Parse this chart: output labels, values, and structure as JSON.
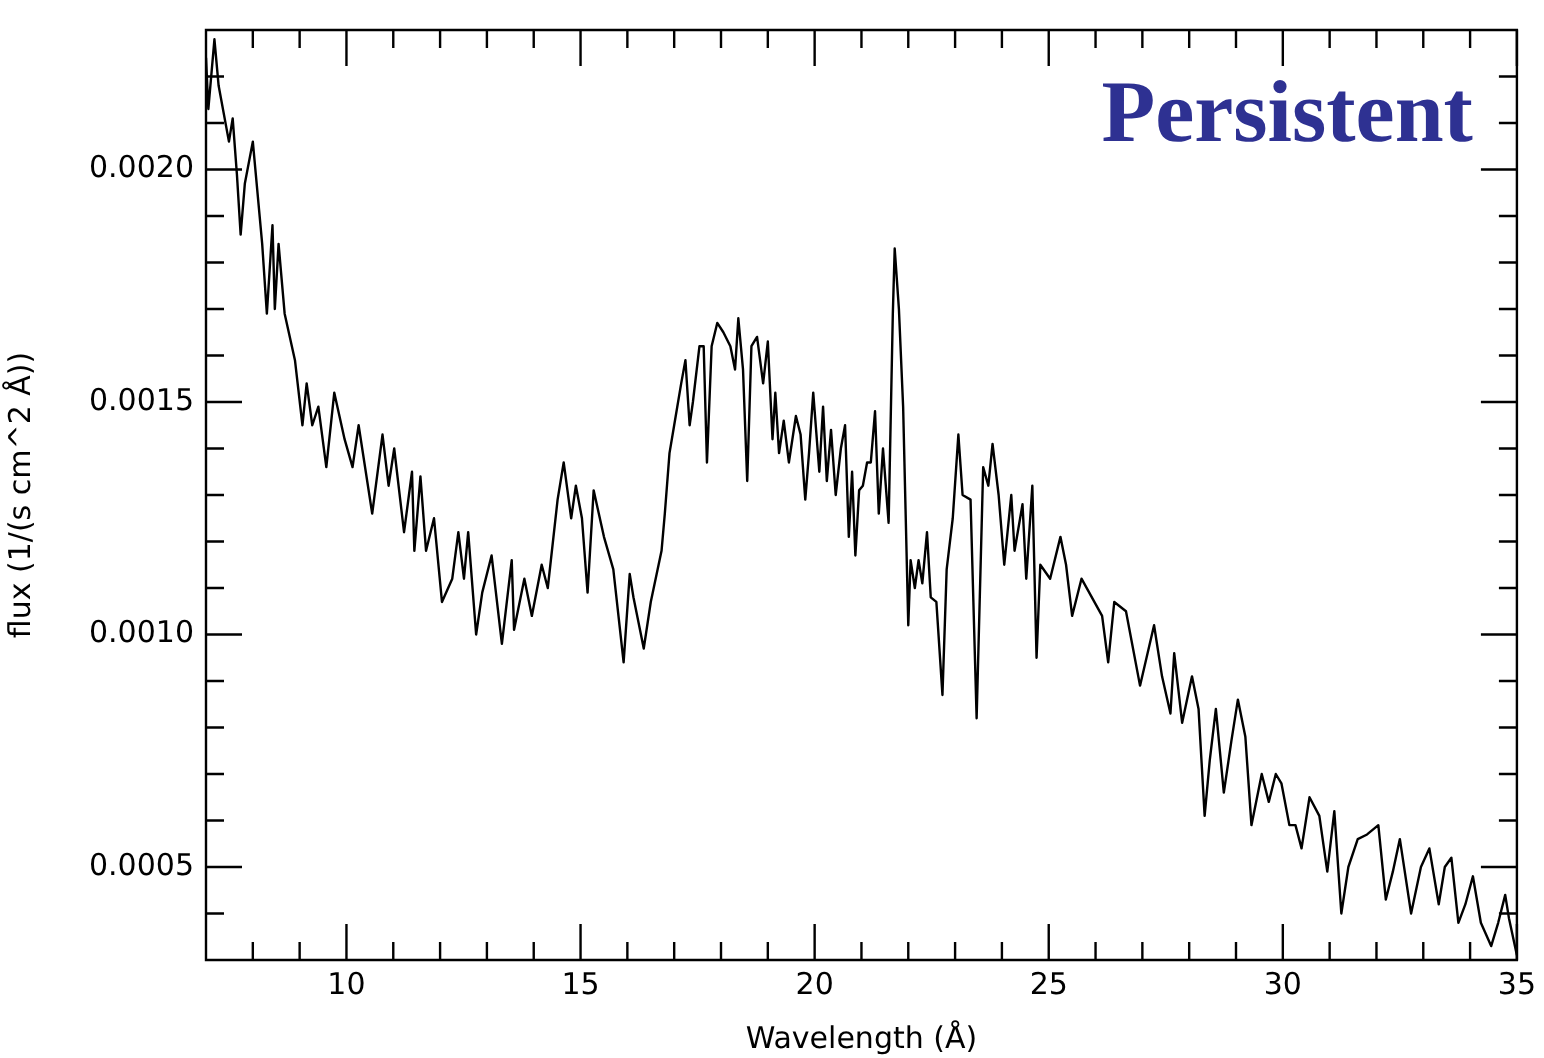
{
  "chart_data": {
    "type": "line",
    "title": "Persistent",
    "xlabel": "Wavelength (Å)",
    "ylabel": "flux (1/(s cm^2 Å))",
    "xlim": [
      7,
      35
    ],
    "ylim": [
      0.0003,
      0.0023
    ],
    "xticks": [
      {
        "value": 8,
        "label": null
      },
      {
        "value": 9,
        "label": null
      },
      {
        "value": 10,
        "label": "10"
      },
      {
        "value": 11,
        "label": null
      },
      {
        "value": 12,
        "label": null
      },
      {
        "value": 13,
        "label": null
      },
      {
        "value": 14,
        "label": null
      },
      {
        "value": 15,
        "label": "15"
      },
      {
        "value": 16,
        "label": null
      },
      {
        "value": 17,
        "label": null
      },
      {
        "value": 18,
        "label": null
      },
      {
        "value": 19,
        "label": null
      },
      {
        "value": 20,
        "label": "20"
      },
      {
        "value": 21,
        "label": null
      },
      {
        "value": 22,
        "label": null
      },
      {
        "value": 23,
        "label": null
      },
      {
        "value": 24,
        "label": null
      },
      {
        "value": 25,
        "label": "25"
      },
      {
        "value": 26,
        "label": null
      },
      {
        "value": 27,
        "label": null
      },
      {
        "value": 28,
        "label": null
      },
      {
        "value": 29,
        "label": null
      },
      {
        "value": 30,
        "label": "30"
      },
      {
        "value": 31,
        "label": null
      },
      {
        "value": 32,
        "label": null
      },
      {
        "value": 33,
        "label": null
      },
      {
        "value": 34,
        "label": null
      },
      {
        "value": 35,
        "label": "35"
      }
    ],
    "yticks": [
      {
        "value": 0.0004,
        "label": null
      },
      {
        "value": 0.0005,
        "label": "0.0005"
      },
      {
        "value": 0.0006,
        "label": null
      },
      {
        "value": 0.0007,
        "label": null
      },
      {
        "value": 0.0008,
        "label": null
      },
      {
        "value": 0.0009,
        "label": null
      },
      {
        "value": 0.001,
        "label": "0.0010"
      },
      {
        "value": 0.0011,
        "label": null
      },
      {
        "value": 0.0012,
        "label": null
      },
      {
        "value": 0.0013,
        "label": null
      },
      {
        "value": 0.0014,
        "label": null
      },
      {
        "value": 0.0015,
        "label": "0.0015"
      },
      {
        "value": 0.0016,
        "label": null
      },
      {
        "value": 0.0017,
        "label": null
      },
      {
        "value": 0.0018,
        "label": null
      },
      {
        "value": 0.0019,
        "label": null
      },
      {
        "value": 0.002,
        "label": "0.0020"
      },
      {
        "value": 0.0021,
        "label": null
      },
      {
        "value": 0.0022,
        "label": null
      }
    ],
    "series": [
      {
        "color": "#000000",
        "x": [
          7.0,
          7.05,
          7.18,
          7.27,
          7.49,
          7.57,
          7.66,
          7.74,
          7.83,
          8.0,
          8.2,
          8.3,
          8.42,
          8.47,
          8.55,
          8.68,
          8.9,
          9.06,
          9.15,
          9.27,
          9.4,
          9.57,
          9.74,
          9.96,
          10.13,
          10.26,
          10.55,
          10.77,
          10.9,
          11.02,
          11.23,
          11.4,
          11.45,
          11.58,
          11.7,
          11.87,
          12.04,
          12.26,
          12.39,
          12.51,
          12.6,
          12.77,
          12.9,
          13.1,
          13.32,
          13.53,
          13.58,
          13.8,
          13.96,
          14.17,
          14.3,
          14.51,
          14.64,
          14.8,
          14.9,
          15.03,
          15.15,
          15.28,
          15.5,
          15.7,
          15.92,
          16.05,
          16.13,
          16.35,
          16.5,
          16.73,
          16.8,
          16.9,
          17.0,
          17.15,
          17.24,
          17.33,
          17.4,
          17.54,
          17.63,
          17.7,
          17.8,
          17.92,
          18.05,
          18.2,
          18.3,
          18.37,
          18.47,
          18.56,
          18.65,
          18.77,
          18.9,
          19.0,
          19.1,
          19.16,
          19.24,
          19.34,
          19.45,
          19.6,
          19.7,
          19.8,
          19.88,
          19.97,
          20.1,
          20.18,
          20.26,
          20.35,
          20.45,
          20.56,
          20.65,
          20.73,
          20.8,
          20.87,
          20.95,
          21.03,
          21.12,
          21.2,
          21.29,
          21.37,
          21.46,
          21.58,
          21.67,
          21.71,
          21.8,
          21.89,
          22.0,
          22.05,
          22.14,
          22.22,
          22.3,
          22.4,
          22.48,
          22.6,
          22.73,
          22.82,
          22.95,
          23.07,
          23.16,
          23.33,
          23.46,
          23.6,
          23.71,
          23.8,
          23.93,
          24.05,
          24.2,
          24.27,
          24.44,
          24.52,
          24.65,
          24.74,
          24.82,
          25.03,
          25.25,
          25.37,
          25.5,
          25.7,
          26.14,
          26.27,
          26.4,
          26.65,
          26.95,
          27.25,
          27.42,
          27.6,
          27.68,
          27.85,
          28.06,
          28.2,
          28.33,
          28.44,
          28.57,
          28.74,
          28.9,
          29.04,
          29.2,
          29.33,
          29.55,
          29.7,
          29.85,
          29.97,
          30.14,
          30.27,
          30.4,
          30.57,
          30.78,
          30.95,
          31.1,
          31.25,
          31.4,
          31.6,
          31.8,
          32.04,
          32.2,
          32.35,
          32.5,
          32.74,
          32.95,
          33.13,
          33.33,
          33.46,
          33.6,
          33.75,
          33.9,
          34.06,
          34.23,
          34.45,
          34.6,
          34.75,
          34.83,
          35.0
        ],
        "values": [
          0.00224,
          0.00213,
          0.00228,
          0.00218,
          0.00206,
          0.00211,
          0.00199,
          0.00186,
          0.00197,
          0.00206,
          0.00184,
          0.00169,
          0.00188,
          0.0017,
          0.00184,
          0.00169,
          0.00159,
          0.00145,
          0.00154,
          0.00145,
          0.00149,
          0.00136,
          0.00152,
          0.00142,
          0.00136,
          0.00145,
          0.00126,
          0.00143,
          0.00132,
          0.0014,
          0.00122,
          0.00135,
          0.00118,
          0.00134,
          0.00118,
          0.00125,
          0.00107,
          0.00112,
          0.00122,
          0.00112,
          0.00122,
          0.001,
          0.00109,
          0.00117,
          0.00098,
          0.00116,
          0.00101,
          0.00112,
          0.00104,
          0.00115,
          0.0011,
          0.00129,
          0.00137,
          0.00125,
          0.00132,
          0.00125,
          0.00109,
          0.00131,
          0.00121,
          0.00114,
          0.00094,
          0.00113,
          0.00108,
          0.00097,
          0.00107,
          0.00118,
          0.00126,
          0.00139,
          0.00145,
          0.00154,
          0.00159,
          0.00145,
          0.0015,
          0.00162,
          0.00162,
          0.00137,
          0.00162,
          0.00167,
          0.00165,
          0.00162,
          0.00157,
          0.00168,
          0.00157,
          0.00133,
          0.00162,
          0.00164,
          0.00154,
          0.00163,
          0.00142,
          0.00152,
          0.00139,
          0.00146,
          0.00137,
          0.00147,
          0.00143,
          0.00129,
          0.00139,
          0.00152,
          0.00135,
          0.00149,
          0.00133,
          0.00144,
          0.0013,
          0.0014,
          0.00145,
          0.00121,
          0.00135,
          0.00117,
          0.00131,
          0.00132,
          0.00137,
          0.00137,
          0.00148,
          0.00126,
          0.0014,
          0.00124,
          0.00169,
          0.00183,
          0.0017,
          0.00149,
          0.00102,
          0.00116,
          0.0011,
          0.00116,
          0.00111,
          0.00122,
          0.00108,
          0.00107,
          0.00087,
          0.00114,
          0.00125,
          0.00143,
          0.0013,
          0.00129,
          0.00082,
          0.00136,
          0.00132,
          0.00141,
          0.0013,
          0.00115,
          0.0013,
          0.00118,
          0.00128,
          0.00112,
          0.00132,
          0.00095,
          0.00115,
          0.00112,
          0.00121,
          0.00115,
          0.00104,
          0.00112,
          0.00104,
          0.00094,
          0.00107,
          0.00105,
          0.00089,
          0.00102,
          0.00091,
          0.00083,
          0.00096,
          0.00081,
          0.00091,
          0.00084,
          0.00061,
          0.00073,
          0.00084,
          0.00066,
          0.00077,
          0.00086,
          0.00078,
          0.00059,
          0.0007,
          0.00064,
          0.0007,
          0.00068,
          0.00059,
          0.00059,
          0.00054,
          0.00065,
          0.00061,
          0.00049,
          0.00062,
          0.0004,
          0.0005,
          0.00056,
          0.00057,
          0.00059,
          0.00043,
          0.00049,
          0.00056,
          0.0004,
          0.0005,
          0.00054,
          0.00042,
          0.0005,
          0.00052,
          0.00038,
          0.00042,
          0.00048,
          0.00038,
          0.00033,
          0.00038,
          0.00044,
          0.00039,
          0.00031
        ]
      }
    ]
  }
}
